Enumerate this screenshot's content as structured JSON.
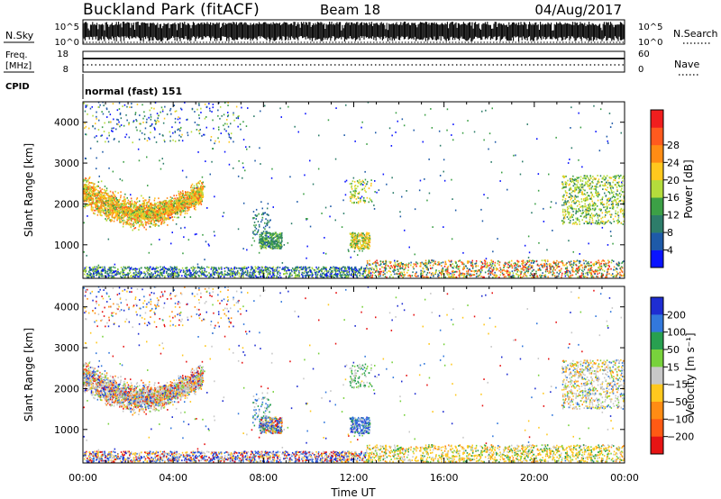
{
  "header": {
    "site": "Buckland Park (fitACF)",
    "beam": "Beam 18",
    "date": "04/Aug/2017"
  },
  "status_panels": {
    "nsky_label": "N.Sky",
    "nsky_ticks": [
      "10^5",
      "10^0"
    ],
    "nsearch_label": "N.Search",
    "nsearch_ticks": [
      "10^5",
      "10^0"
    ],
    "freq_label_1": "Freq.",
    "freq_label_2": "[MHz]",
    "freq_ticks": [
      "18",
      "8"
    ],
    "nave_label": "Nave",
    "nave_ticks": [
      "60",
      "0"
    ],
    "cpid_label": "CPID",
    "cpid_value": "normal (fast) 151"
  },
  "chart_data": [
    {
      "type": "heatmap",
      "parameter": "Power",
      "ylabel": "Slant Range [km]",
      "ylim": [
        180,
        4500
      ],
      "yticks": [
        "1000",
        "2000",
        "3000",
        "4000"
      ],
      "xlim": [
        "00:00",
        "24:00"
      ],
      "colorbar_label": "Power [dB]",
      "colorbar_ticks": [
        "4",
        "8",
        "12",
        "16",
        "20",
        "24",
        "28"
      ],
      "colors": [
        "#0a14ff",
        "#1e5aa8",
        "#2d7d6a",
        "#3ca046",
        "#b4dc3c",
        "#ffc81e",
        "#ff8c14",
        "#ff5a1e",
        "#f01e1e"
      ],
      "scatter_regions": [
        {
          "t": [
            0.0,
            5.2
          ],
          "r": [
            1300,
            2900
          ],
          "value": "strong, 16-24 dB"
        },
        {
          "t": [
            7.8,
            8.8
          ],
          "r": [
            900,
            1300
          ],
          "value": "8-16 dB"
        },
        {
          "t": [
            11.8,
            12.7
          ],
          "r": [
            900,
            1300
          ],
          "value": "12-20 dB"
        },
        {
          "t": [
            21.2,
            24.0
          ],
          "r": [
            1500,
            2700
          ],
          "value": "12-20 dB"
        },
        {
          "t": [
            12.5,
            24.0
          ],
          "r": [
            180,
            600
          ],
          "value": "near-range ground scatter"
        }
      ]
    },
    {
      "type": "heatmap",
      "parameter": "Velocity",
      "ylabel": "Slant Range [km]",
      "ylim": [
        180,
        4500
      ],
      "yticks": [
        "1000",
        "2000",
        "3000",
        "4000"
      ],
      "xlabel": "Time UT",
      "xticks": [
        "00:00",
        "04:00",
        "08:00",
        "12:00",
        "16:00",
        "20:00",
        "00:00"
      ],
      "colorbar_label": "Velocity [m s⁻¹]",
      "colorbar_ticks": [
        "200",
        "100",
        "50",
        "15",
        "−15",
        "−50",
        "−100",
        "−200"
      ],
      "colors": [
        "#1e2dd2",
        "#3278dc",
        "#28a050",
        "#78d23c",
        "#c8c8c8",
        "#ffc81e",
        "#ff8c14",
        "#ff5a14",
        "#e61414"
      ]
    }
  ]
}
